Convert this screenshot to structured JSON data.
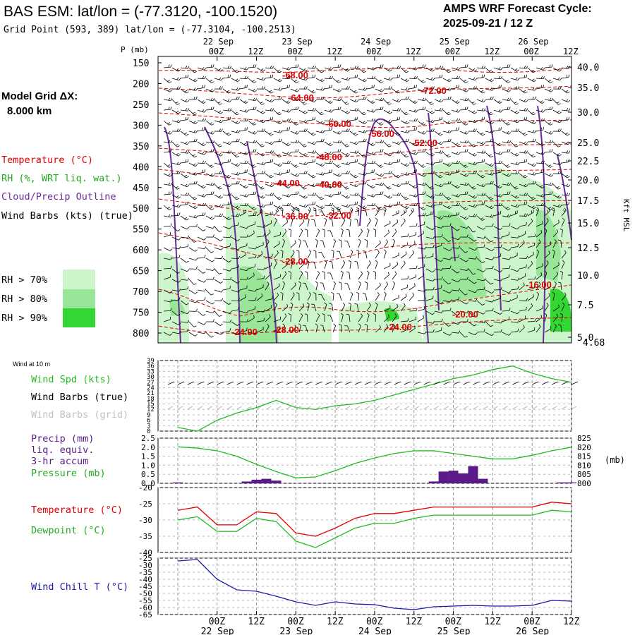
{
  "header": {
    "title": "BAS ESM:  lat/lon = (-77.3120, -100.1520)",
    "grid_point": "Grid Point (593, 389) lat/lon = (-77.3104, -100.2513)",
    "cycle_line1": "AMPS WRF Forecast Cycle:",
    "cycle_line2": "2025-09-21 / 12  Z"
  },
  "left_legend": {
    "model_grid_line1": "Model Grid ΔX:",
    "model_grid_line2": "8.000 km",
    "temperature": "Temperature (°C)",
    "rh": "RH (%, WRT liq. wat.)",
    "cloud": "Cloud/Precip Outline",
    "wind_barbs": "Wind Barbs (kts) (true)",
    "rh70": "RH > 70%",
    "rh80": "RH > 80%",
    "rh90": "RH > 90%",
    "wind_10m": "Wind at 10 m",
    "wind_spd": "Wind Spd (kts)",
    "wind_barbs_true": "Wind Barbs (true)",
    "wind_barbs_grid": "Wind Barbs (grid)",
    "precip1": "Precip (mm)",
    "precip2": "liq. equiv.",
    "precip3": "3-hr accum",
    "pressure": "Pressure (mb)",
    "temp2": "Temperature (°C)",
    "dewpoint": "Dewpoint (°C)",
    "windchill": "Wind Chill T (°C)"
  },
  "colors": {
    "temperature": "#e00000",
    "green": "#22bb22",
    "cloud": "#6a2a9a",
    "precip": "#5a1a8a",
    "windchill": "#1a1aaa",
    "rh70": "#ccf5cc",
    "rh80": "#99e699",
    "rh90": "#33d633"
  },
  "chart_data": [
    {
      "type": "heatmap",
      "title": "Time-height cross section",
      "ylabel": "P (mb)",
      "right_axis_label": "Kft MSL",
      "pressure_ticks": [
        "150",
        "200",
        "250",
        "300",
        "350",
        "400",
        "450",
        "500",
        "550",
        "600",
        "650",
        "700",
        "750",
        "800"
      ],
      "height_ticks": [
        "40.0",
        "35.0",
        "30.0",
        "25.0",
        "22.5",
        "20.0",
        "17.5",
        "15.0",
        "12.5",
        "10.0",
        "7.5",
        "5.0"
      ],
      "surface_height": "4.68",
      "time_ticks_top": [
        "00Z",
        "12Z",
        "00Z",
        "12Z",
        "00Z",
        "12Z",
        "00Z",
        "12Z",
        "00Z",
        "12Z"
      ],
      "date_labels_top": [
        "22 Sep",
        "23 Sep",
        "24 Sep",
        "25 Sep",
        "26 Sep"
      ],
      "temperature_labels": [
        "-68.00",
        "-64.00",
        "-72.00",
        "-60.00",
        "-56.00",
        "-52.00",
        "-48.00",
        "-44.00",
        "-40.00",
        "-36.00",
        "-32.00",
        "-28.00",
        "-24.00",
        "-28.00",
        "-24.00",
        "-20.00",
        "-16.00"
      ]
    },
    {
      "type": "line",
      "title": "Wind at 10 m",
      "ylabel": "Wind Spd (kts)",
      "yticks": [
        "39",
        "36",
        "33",
        "30",
        "27",
        "24",
        "21",
        "18",
        "15",
        "12",
        "9",
        "6",
        "3",
        "0"
      ],
      "ylim": [
        0,
        39
      ],
      "x_hours": [
        0,
        6,
        12,
        18,
        24,
        30,
        36,
        42,
        48,
        54,
        60,
        66,
        72,
        78,
        84,
        90,
        96,
        102,
        108,
        114,
        120
      ],
      "values": [
        2,
        0,
        6,
        10,
        13,
        17,
        13,
        12,
        14,
        15,
        17,
        20,
        23,
        26,
        29,
        31,
        34,
        36,
        32,
        29,
        27
      ]
    },
    {
      "type": "bar",
      "title": "Precip (mm) liq. equiv. 3-hr accum / Pressure (mb)",
      "yticks_left": [
        "2.5",
        "2.0",
        "1.5",
        "1.0",
        "0.5",
        "0.0"
      ],
      "yticks_right": [
        "825",
        "820",
        "815",
        "810",
        "805",
        "800"
      ],
      "right_unit": "(mb)",
      "precip_hours": [
        0,
        21,
        24,
        27,
        30,
        78,
        81,
        84,
        87,
        90,
        93,
        117,
        120
      ],
      "precip_values": [
        0.05,
        0.1,
        0.2,
        0.25,
        0.15,
        0.1,
        0.65,
        0.7,
        0.55,
        0.95,
        0.25,
        0.05,
        0.05
      ],
      "pressure_hours": [
        0,
        6,
        12,
        18,
        24,
        30,
        36,
        42,
        48,
        54,
        60,
        66,
        72,
        78,
        84,
        90,
        96,
        102,
        108,
        114,
        120
      ],
      "pressure_values": [
        820.2,
        819.5,
        818,
        815,
        810.5,
        806.5,
        803,
        803.5,
        807,
        811,
        814,
        816.5,
        818,
        818,
        816.5,
        815,
        813.5,
        813.5,
        815.5,
        818,
        820
      ]
    },
    {
      "type": "line",
      "yticks": [
        "-20",
        "-25",
        "-30",
        "-35",
        "-40"
      ],
      "ylim": [
        -40,
        -20
      ],
      "series": [
        {
          "name": "Temperature (°C)",
          "x": [
            0,
            6,
            12,
            18,
            24,
            30,
            36,
            42,
            48,
            54,
            60,
            66,
            72,
            78,
            84,
            90,
            96,
            102,
            108,
            114,
            120
          ],
          "values": [
            -27,
            -26,
            -31.5,
            -31.5,
            -27.5,
            -28,
            -34,
            -35,
            -32.5,
            -29.5,
            -28,
            -28,
            -27,
            -26,
            -26,
            -26,
            -26,
            -26,
            -26,
            -24.5,
            -25
          ]
        },
        {
          "name": "Dewpoint (°C)",
          "x": [
            0,
            6,
            12,
            18,
            24,
            30,
            36,
            42,
            48,
            54,
            60,
            66,
            72,
            78,
            84,
            90,
            96,
            102,
            108,
            114,
            120
          ],
          "values": [
            -30,
            -29,
            -33.5,
            -33.5,
            -29.5,
            -30.5,
            -36.5,
            -38.5,
            -35.5,
            -32.5,
            -31,
            -31,
            -29.5,
            -28.5,
            -28.5,
            -28.5,
            -28.5,
            -28.5,
            -28.5,
            -27,
            -27.5
          ]
        }
      ]
    },
    {
      "type": "line",
      "title": "Wind Chill T (°C)",
      "yticks": [
        "-25",
        "-30",
        "-35",
        "-40",
        "-45",
        "-50",
        "-55",
        "-60",
        "-65"
      ],
      "ylim": [
        -65,
        -25
      ],
      "x_hours": [
        0,
        6,
        12,
        18,
        24,
        30,
        36,
        42,
        48,
        54,
        60,
        66,
        72,
        78,
        84,
        90,
        96,
        102,
        108,
        114,
        120
      ],
      "values": [
        -27,
        -26,
        -40,
        -47.5,
        -48.5,
        -52,
        -56,
        -58.5,
        -56,
        -57.5,
        -58,
        -60.5,
        -61.5,
        -59.5,
        -59,
        -58.5,
        -59,
        -59,
        -58.5,
        -55,
        -55.5
      ]
    }
  ],
  "bottom_axis": {
    "time_ticks": [
      "00Z",
      "12Z",
      "00Z",
      "12Z",
      "00Z",
      "12Z",
      "00Z",
      "12Z",
      "00Z",
      "12Z"
    ],
    "date_labels": [
      "22 Sep",
      "23 Sep",
      "24 Sep",
      "25 Sep",
      "26 Sep"
    ]
  }
}
